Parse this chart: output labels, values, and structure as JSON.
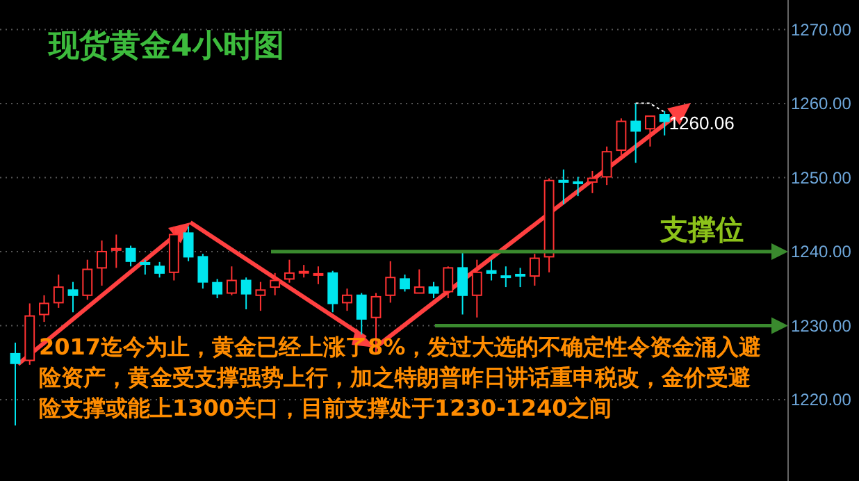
{
  "chart_data": {
    "type": "candlestick",
    "title": "现货黄金4小时图",
    "categories": [
      null,
      null,
      null,
      null,
      null,
      null,
      null,
      null,
      null,
      null,
      null,
      null,
      null,
      null,
      null,
      null,
      null,
      null,
      null,
      null,
      null,
      null,
      null,
      null,
      null,
      null,
      null,
      null,
      null,
      null,
      null,
      null,
      null,
      null,
      null,
      null,
      null,
      null,
      null,
      null,
      null,
      null,
      null,
      null,
      null,
      null,
      null,
      null,
      null,
      null,
      null,
      null,
      null,
      null
    ],
    "ohlc": [
      [
        1226.2,
        1227.7,
        1216.5,
        1224.9
      ],
      [
        1225.3,
        1233.0,
        1224.7,
        1231.3
      ],
      [
        1231.5,
        1234.1,
        1230.5,
        1233.0
      ],
      [
        1233.1,
        1236.9,
        1232.4,
        1235.2
      ],
      [
        1234.8,
        1235.9,
        1231.8,
        1234.1
      ],
      [
        1234.1,
        1238.9,
        1233.5,
        1237.6
      ],
      [
        1237.8,
        1241.5,
        1235.4,
        1240.0
      ],
      [
        1240.2,
        1242.3,
        1237.8,
        1240.4
      ],
      [
        1240.4,
        1240.8,
        1238.0,
        1238.7
      ],
      [
        1238.5,
        1238.9,
        1236.9,
        1238.3
      ],
      [
        1238.0,
        1238.6,
        1236.5,
        1237.1
      ],
      [
        1237.2,
        1243.4,
        1236.1,
        1242.3
      ],
      [
        1242.5,
        1243.4,
        1238.7,
        1239.3
      ],
      [
        1239.3,
        1239.7,
        1235.0,
        1235.9
      ],
      [
        1235.8,
        1236.3,
        1233.7,
        1234.3
      ],
      [
        1234.4,
        1238.0,
        1234.1,
        1236.1
      ],
      [
        1236.1,
        1236.5,
        1232.2,
        1234.3
      ],
      [
        1234.1,
        1235.9,
        1232.0,
        1234.8
      ],
      [
        1235.2,
        1237.1,
        1234.1,
        1236.1
      ],
      [
        1236.3,
        1238.9,
        1235.8,
        1237.1
      ],
      [
        1237.2,
        1238.2,
        1236.5,
        1237.3
      ],
      [
        1236.9,
        1238.0,
        1235.6,
        1237.0
      ],
      [
        1237.1,
        1237.4,
        1231.8,
        1233.0
      ],
      [
        1233.1,
        1235.0,
        1232.0,
        1234.1
      ],
      [
        1234.1,
        1234.4,
        1228.8,
        1230.9
      ],
      [
        1231.1,
        1234.4,
        1226.2,
        1233.9
      ],
      [
        1234.1,
        1238.7,
        1233.1,
        1236.5
      ],
      [
        1236.3,
        1236.9,
        1234.6,
        1235.0
      ],
      [
        1234.4,
        1237.6,
        1234.4,
        1235.2
      ],
      [
        1235.2,
        1235.9,
        1233.7,
        1234.4
      ],
      [
        1234.6,
        1238.0,
        1233.7,
        1237.8
      ],
      [
        1237.8,
        1240.0,
        1231.5,
        1234.1
      ],
      [
        1234.1,
        1238.9,
        1231.1,
        1237.2
      ],
      [
        1237.4,
        1238.9,
        1236.1,
        1237.1
      ],
      [
        1236.7,
        1238.0,
        1235.2,
        1236.6
      ],
      [
        1236.9,
        1237.8,
        1235.2,
        1236.8
      ],
      [
        1236.7,
        1239.7,
        1235.4,
        1239.1
      ],
      [
        1239.3,
        1249.9,
        1237.2,
        1249.6
      ],
      [
        1249.6,
        1251.1,
        1246.4,
        1249.4
      ],
      [
        1249.4,
        1250.1,
        1247.5,
        1249.3
      ],
      [
        1249.4,
        1250.9,
        1247.9,
        1249.9
      ],
      [
        1250.1,
        1254.2,
        1249.0,
        1253.5
      ],
      [
        1253.7,
        1258.0,
        1252.9,
        1257.6
      ],
      [
        1257.6,
        1260.06,
        1252.0,
        1256.3
      ],
      [
        1256.6,
        1258.3,
        1254.2,
        1258.3
      ],
      [
        1258.5,
        1259.0,
        1255.7,
        1257.6
      ],
      null,
      null,
      null,
      null,
      null,
      null,
      null,
      null
    ],
    "colors": [
      "#00e5ee",
      "#ff3232",
      "#ff3232",
      "#ff3232",
      "#00e5ee",
      "#ff3232",
      "#ff3232",
      "#ff3232",
      "#00e5ee",
      "#00e5ee",
      "#00e5ee",
      "#ff3232",
      "#00e5ee",
      "#00e5ee",
      "#00e5ee",
      "#ff3232",
      "#00e5ee",
      "#ff3232",
      "#ff3232",
      "#ff3232",
      "#ff3232",
      "#ff3232",
      "#00e5ee",
      "#ff3232",
      "#00e5ee",
      "#ff3232",
      "#ff3232",
      "#00e5ee",
      "#ff3232",
      "#00e5ee",
      "#ff3232",
      "#00e5ee",
      "#ff3232",
      "#00e5ee",
      "#00e5ee",
      "#00e5ee",
      "#ff3232",
      "#ff3232",
      "#00e5ee",
      "#00e5ee",
      "#ff3232",
      "#ff3232",
      "#ff3232",
      "#00e5ee",
      "#ff3232",
      "#00e5ee",
      null,
      null,
      null,
      null,
      null,
      null,
      null,
      null
    ],
    "ylim": [
      1209,
      1274
    ],
    "yticks": [
      {
        "value": 1220,
        "label": "1220.00"
      },
      {
        "value": 1230,
        "label": "1230.00"
      },
      {
        "value": 1240,
        "label": "1240.00"
      },
      {
        "value": 1250,
        "label": "1250.00"
      },
      {
        "value": 1260,
        "label": "1260.00"
      },
      {
        "value": 1270,
        "label": "1270.00"
      }
    ],
    "tick_labels": "y",
    "grid": "y",
    "ref_lines": [
      {
        "axis": "y",
        "value": 1240,
        "label": "支撑位",
        "color": "#3a8a2e"
      },
      {
        "axis": "y",
        "value": 1230,
        "color": "#3a8a2e"
      }
    ],
    "annotations": [
      "1260.06",
      "2017迄今为止，黄金已经上涨了8%，发过大选的不确定性令资金涌入避险资产，黄金受支撑强势上行，加之特朗普昨日讲话重申税改，金价受避险支撑或能上1300关口，目前支撑处于1230-1240之间"
    ]
  }
}
